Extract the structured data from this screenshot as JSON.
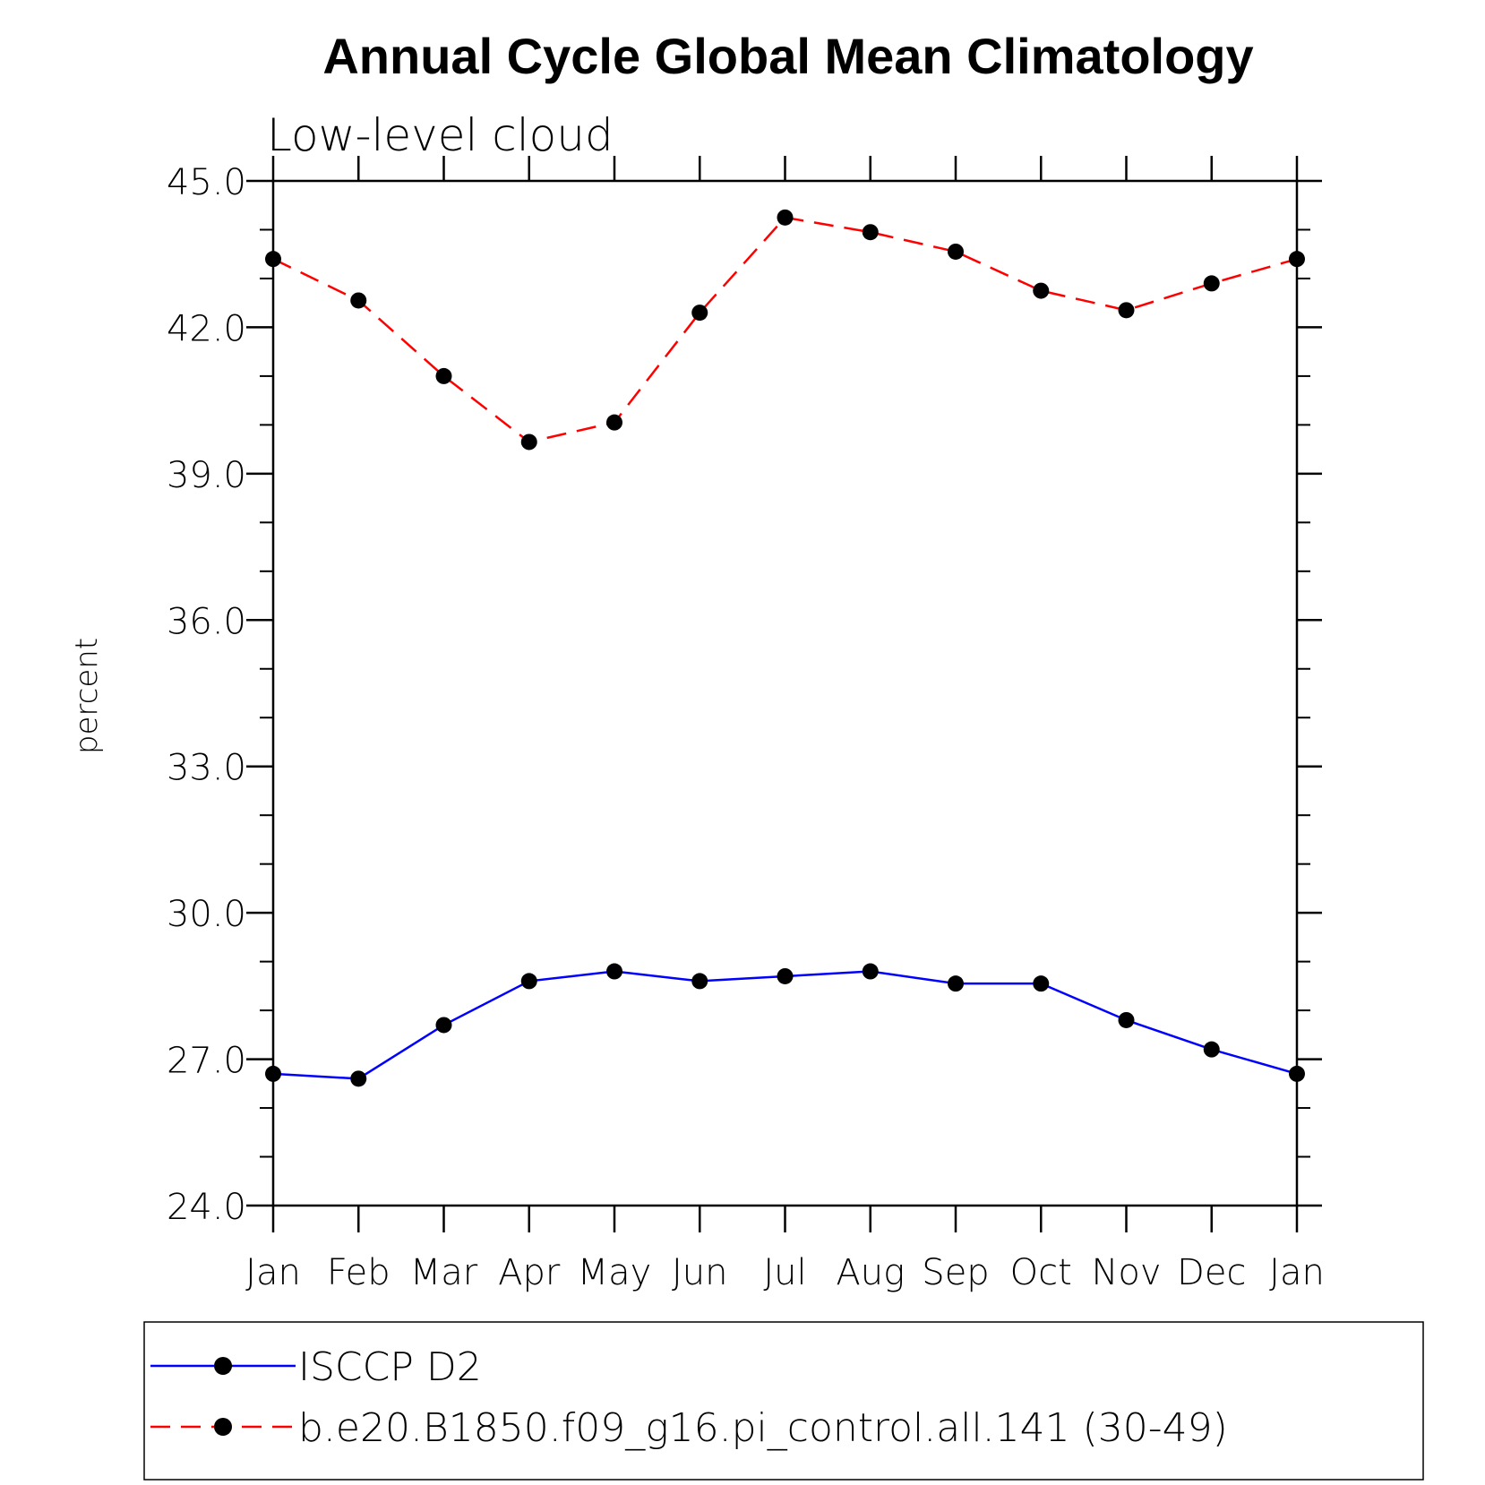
{
  "chart_data": {
    "type": "line",
    "title": "Annual Cycle Global Mean Climatology",
    "subtitle": "Low-level cloud",
    "ylabel": "percent",
    "xlabel": "",
    "categories": [
      "Jan",
      "Feb",
      "Mar",
      "Apr",
      "May",
      "Jun",
      "Jul",
      "Aug",
      "Sep",
      "Oct",
      "Nov",
      "Dec",
      "Jan"
    ],
    "ylim": [
      24.0,
      45.0
    ],
    "yticks": [
      "24.0",
      "27.0",
      "30.0",
      "33.0",
      "36.0",
      "39.0",
      "42.0",
      "45.0"
    ],
    "yminor_step": 1.0,
    "grid": false,
    "legend_position": "bottom",
    "series": [
      {
        "name": "ISCCP D2",
        "color": "#0000ff",
        "dash": "solid",
        "marker": "filled-circle",
        "values": [
          26.7,
          26.6,
          27.7,
          28.6,
          28.8,
          28.6,
          28.7,
          28.8,
          28.55,
          28.55,
          27.8,
          27.2,
          26.7
        ]
      },
      {
        "name": "b.e20.B1850.f09_g16.pi_control.all.141 (30-49)",
        "color": "#ff0000",
        "dash": "dashed",
        "marker": "filled-circle",
        "values": [
          43.4,
          42.55,
          41.0,
          39.65,
          40.05,
          42.3,
          44.25,
          43.95,
          43.55,
          42.75,
          42.35,
          42.9,
          43.4
        ]
      }
    ]
  }
}
